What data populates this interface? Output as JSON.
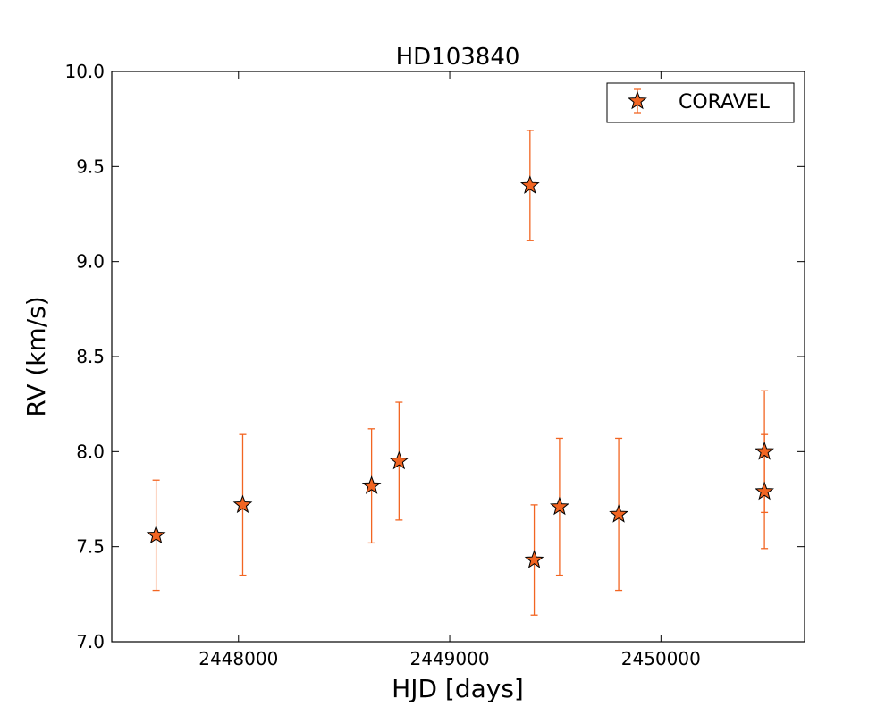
{
  "chart_data": {
    "type": "scatter",
    "title": "HD103840",
    "xlabel": "HJD [days]",
    "ylabel": "RV (km/s)",
    "xlim": [
      2447400,
      2450680
    ],
    "ylim": [
      7.0,
      10.0
    ],
    "x_ticks": [
      2448000,
      2449000,
      2450000
    ],
    "x_tick_labels": [
      "2448000",
      "2449000",
      "2450000"
    ],
    "y_ticks": [
      7.0,
      7.5,
      8.0,
      8.5,
      9.0,
      9.5,
      10.0
    ],
    "y_tick_labels": [
      "7.0",
      "7.5",
      "8.0",
      "8.5",
      "9.0",
      "9.5",
      "10.0"
    ],
    "grid": false,
    "legend_position": "top-right",
    "series": [
      {
        "name": "CORAVEL",
        "marker": "star",
        "color": "#f26522",
        "error_color": "#f26522",
        "points": [
          {
            "x": 2447610,
            "y": 7.56,
            "err": 0.29
          },
          {
            "x": 2448020,
            "y": 7.72,
            "err": 0.37
          },
          {
            "x": 2448630,
            "y": 7.82,
            "err": 0.3
          },
          {
            "x": 2448760,
            "y": 7.95,
            "err": 0.31
          },
          {
            "x": 2449380,
            "y": 9.4,
            "err": 0.29
          },
          {
            "x": 2449400,
            "y": 7.43,
            "err": 0.29
          },
          {
            "x": 2449520,
            "y": 7.71,
            "err": 0.36
          },
          {
            "x": 2449800,
            "y": 7.67,
            "err": 0.4
          },
          {
            "x": 2450490,
            "y": 8.0,
            "err": 0.32
          },
          {
            "x": 2450490,
            "y": 7.79,
            "err": 0.3
          }
        ]
      }
    ]
  }
}
